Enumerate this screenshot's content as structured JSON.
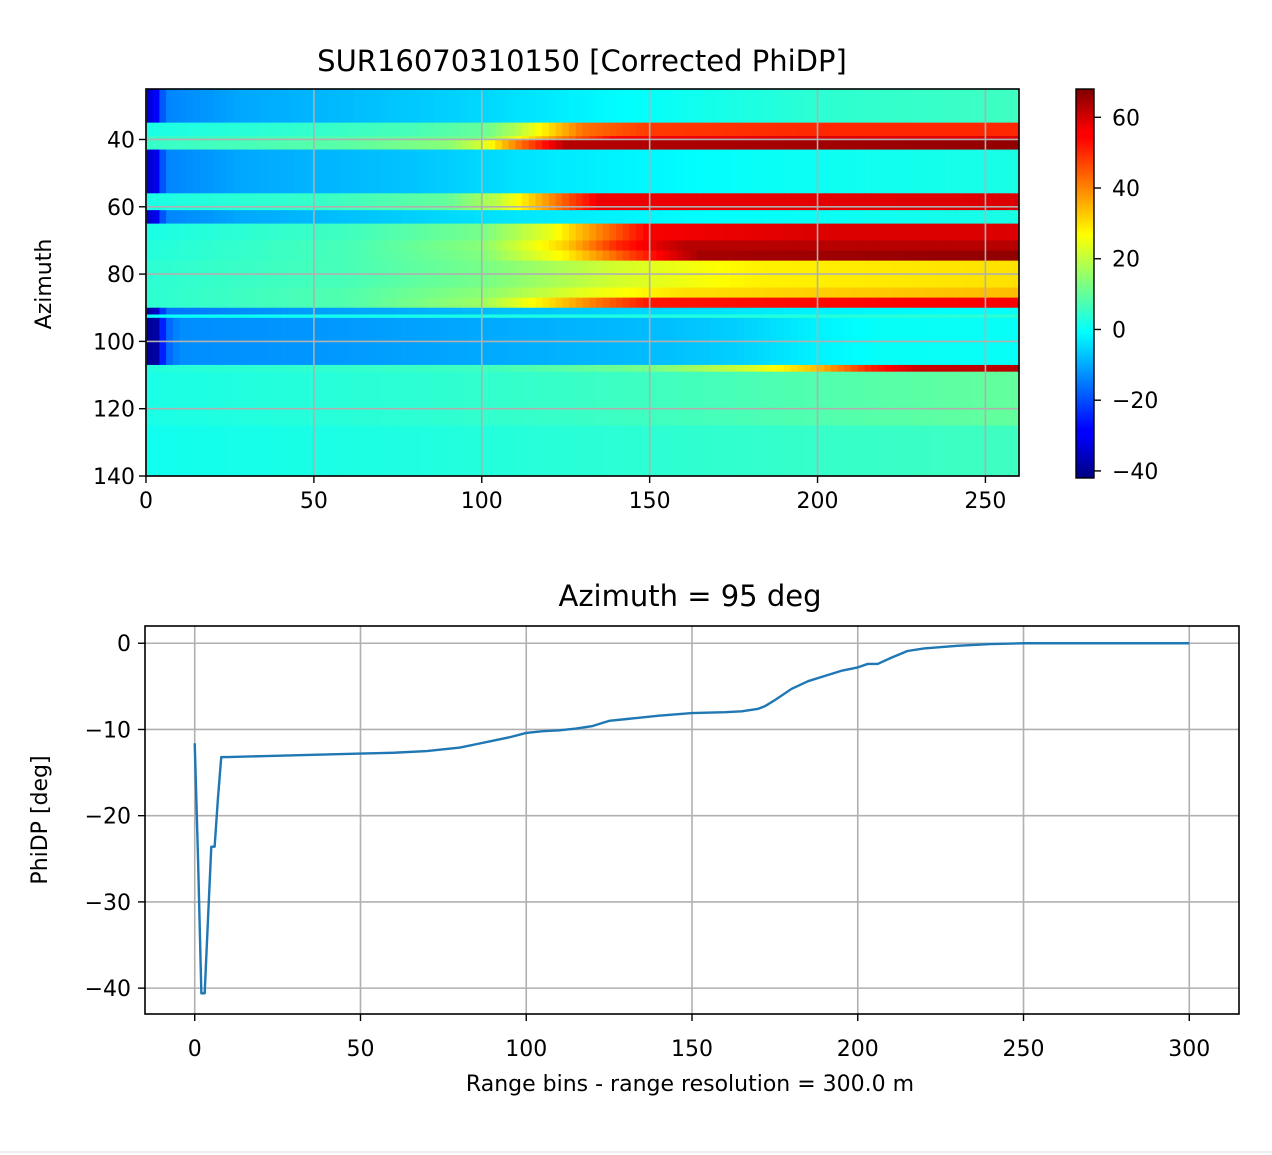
{
  "chart_data": [
    {
      "type": "heatmap",
      "title": "SUR16070310150 [Corrected PhiDP]",
      "xlabel": "",
      "ylabel": "Azimuth",
      "xlim": [
        0,
        260
      ],
      "ylim": [
        140,
        25
      ],
      "x_ticks": [
        "0",
        "50",
        "100",
        "150",
        "200",
        "250"
      ],
      "y_ticks": [
        "40",
        "60",
        "80",
        "100",
        "120",
        "140"
      ],
      "grid": true,
      "colormap": "jet",
      "colorbar": {
        "vmin": -42,
        "vmax": 68,
        "ticks": [
          "60",
          "40",
          "20",
          "0",
          "−20",
          "−40"
        ]
      },
      "rows": [
        {
          "az": [
            25,
            35
          ],
          "profile": [
            [
              0,
              -35
            ],
            [
              3,
              -28
            ],
            [
              6,
              -14
            ],
            [
              30,
              -10
            ],
            [
              60,
              -8
            ],
            [
              100,
              -5
            ],
            [
              140,
              -1
            ],
            [
              200,
              4
            ],
            [
              260,
              6
            ]
          ]
        },
        {
          "az": [
            35,
            39
          ],
          "profile": [
            [
              0,
              2
            ],
            [
              40,
              4
            ],
            [
              80,
              7
            ],
            [
              100,
              10
            ],
            [
              110,
              18
            ],
            [
              120,
              30
            ],
            [
              130,
              42
            ],
            [
              150,
              48
            ],
            [
              200,
              50
            ],
            [
              260,
              50
            ]
          ]
        },
        {
          "az": [
            39,
            40
          ],
          "profile": [
            [
              0,
              5
            ],
            [
              60,
              8
            ],
            [
              100,
              12
            ],
            [
              110,
              25
            ],
            [
              125,
              42
            ],
            [
              140,
              55
            ],
            [
              200,
              58
            ],
            [
              260,
              58
            ]
          ]
        },
        {
          "az": [
            40,
            43
          ],
          "profile": [
            [
              0,
              5
            ],
            [
              60,
              9
            ],
            [
              90,
              14
            ],
            [
              100,
              22
            ],
            [
              110,
              40
            ],
            [
              125,
              62
            ],
            [
              260,
              66
            ]
          ]
        },
        {
          "az": [
            43,
            56
          ],
          "profile": [
            [
              0,
              -35
            ],
            [
              3,
              -30
            ],
            [
              6,
              -14
            ],
            [
              30,
              -10
            ],
            [
              80,
              -7
            ],
            [
              120,
              -3
            ],
            [
              180,
              0
            ],
            [
              260,
              2
            ]
          ]
        },
        {
          "az": [
            56,
            61
          ],
          "profile": [
            [
              0,
              2
            ],
            [
              50,
              5
            ],
            [
              90,
              10
            ],
            [
              105,
              20
            ],
            [
              115,
              32
            ],
            [
              125,
              45
            ],
            [
              135,
              56
            ],
            [
              260,
              58
            ]
          ]
        },
        {
          "az": [
            61,
            65
          ],
          "profile": [
            [
              0,
              -35
            ],
            [
              3,
              -30
            ],
            [
              6,
              -14
            ],
            [
              30,
              -10
            ],
            [
              100,
              -4
            ],
            [
              160,
              -1
            ],
            [
              260,
              2
            ]
          ]
        },
        {
          "az": [
            65,
            70
          ],
          "profile": [
            [
              0,
              2
            ],
            [
              60,
              6
            ],
            [
              100,
              12
            ],
            [
              120,
              24
            ],
            [
              135,
              40
            ],
            [
              150,
              55
            ],
            [
              200,
              58
            ],
            [
              260,
              58
            ]
          ]
        },
        {
          "az": [
            70,
            73
          ],
          "profile": [
            [
              0,
              3
            ],
            [
              60,
              7
            ],
            [
              100,
              14
            ],
            [
              125,
              32
            ],
            [
              140,
              50
            ],
            [
              160,
              62
            ],
            [
              260,
              62
            ]
          ]
        },
        {
          "az": [
            73,
            76
          ],
          "profile": [
            [
              0,
              3
            ],
            [
              60,
              7
            ],
            [
              100,
              13
            ],
            [
              125,
              28
            ],
            [
              145,
              48
            ],
            [
              165,
              64
            ],
            [
              260,
              66
            ]
          ]
        },
        {
          "az": [
            76,
            84
          ],
          "profile": [
            [
              0,
              4
            ],
            [
              60,
              7
            ],
            [
              100,
              12
            ],
            [
              140,
              22
            ],
            [
              180,
              28
            ],
            [
              260,
              30
            ]
          ]
        },
        {
          "az": [
            84,
            87
          ],
          "profile": [
            [
              0,
              4
            ],
            [
              60,
              8
            ],
            [
              100,
              14
            ],
            [
              130,
              24
            ],
            [
              160,
              30
            ],
            [
              200,
              32
            ],
            [
              260,
              34
            ]
          ]
        },
        {
          "az": [
            87,
            90
          ],
          "profile": [
            [
              0,
              4
            ],
            [
              60,
              8
            ],
            [
              100,
              16
            ],
            [
              120,
              30
            ],
            [
              135,
              42
            ],
            [
              150,
              52
            ],
            [
              260,
              55
            ]
          ]
        },
        {
          "az": [
            90,
            92
          ],
          "profile": [
            [
              0,
              -40
            ],
            [
              3,
              -34
            ],
            [
              6,
              -16
            ],
            [
              40,
              -12
            ],
            [
              100,
              -8
            ],
            [
              200,
              -2
            ],
            [
              260,
              0
            ]
          ]
        },
        {
          "az": [
            92,
            93
          ],
          "profile": [
            [
              0,
              0
            ],
            [
              100,
              2
            ],
            [
              260,
              4
            ]
          ]
        },
        {
          "az": [
            93,
            107
          ],
          "profile": [
            [
              0,
              -40
            ],
            [
              3,
              -38
            ],
            [
              6,
              -18
            ],
            [
              10,
              -13
            ],
            [
              50,
              -12
            ],
            [
              100,
              -10
            ],
            [
              150,
              -8
            ],
            [
              175,
              -6
            ],
            [
              200,
              -2
            ],
            [
              220,
              0
            ],
            [
              260,
              0
            ]
          ]
        },
        {
          "az": [
            107,
            109
          ],
          "profile": [
            [
              0,
              3
            ],
            [
              100,
              6
            ],
            [
              150,
              12
            ],
            [
              180,
              22
            ],
            [
              200,
              34
            ],
            [
              215,
              50
            ],
            [
              230,
              60
            ],
            [
              260,
              62
            ]
          ]
        },
        {
          "az": [
            109,
            125
          ],
          "profile": [
            [
              0,
              2
            ],
            [
              80,
              4
            ],
            [
              150,
              6
            ],
            [
              200,
              8
            ],
            [
              260,
              10
            ]
          ]
        },
        {
          "az": [
            125,
            140
          ],
          "profile": [
            [
              0,
              1
            ],
            [
              100,
              3
            ],
            [
              200,
              5
            ],
            [
              260,
              6
            ]
          ]
        }
      ]
    },
    {
      "type": "line",
      "title": "Azimuth = 95 deg",
      "xlabel": "Range bins - range resolution = 300.0 m",
      "ylabel": "PhiDP [deg]",
      "xlim": [
        -15,
        315
      ],
      "ylim": [
        -43,
        2
      ],
      "x_ticks": [
        "0",
        "50",
        "100",
        "150",
        "200",
        "250",
        "300"
      ],
      "y_ticks": [
        "0",
        "−10",
        "−20",
        "−30",
        "−40"
      ],
      "grid": true,
      "color": "#1f77b4",
      "x": [
        0,
        1,
        2,
        3,
        4,
        5,
        6,
        7,
        8,
        10,
        20,
        30,
        40,
        50,
        60,
        70,
        80,
        85,
        90,
        95,
        100,
        105,
        110,
        115,
        120,
        125,
        130,
        140,
        150,
        160,
        165,
        170,
        172,
        175,
        180,
        185,
        190,
        195,
        200,
        203,
        206,
        210,
        215,
        220,
        230,
        240,
        250,
        260,
        280,
        300
      ],
      "y": [
        -11.6,
        -25,
        -40.6,
        -40.6,
        -32,
        -23.6,
        -23.6,
        -18,
        -13.2,
        -13.2,
        -13.1,
        -13.0,
        -12.9,
        -12.8,
        -12.7,
        -12.5,
        -12.1,
        -11.7,
        -11.3,
        -10.9,
        -10.4,
        -10.2,
        -10.1,
        -9.9,
        -9.6,
        -9.0,
        -8.8,
        -8.4,
        -8.1,
        -8.0,
        -7.9,
        -7.6,
        -7.3,
        -6.6,
        -5.3,
        -4.4,
        -3.8,
        -3.2,
        -2.8,
        -2.4,
        -2.4,
        -1.7,
        -0.9,
        -0.6,
        -0.3,
        -0.1,
        0,
        0,
        0,
        0
      ]
    }
  ]
}
